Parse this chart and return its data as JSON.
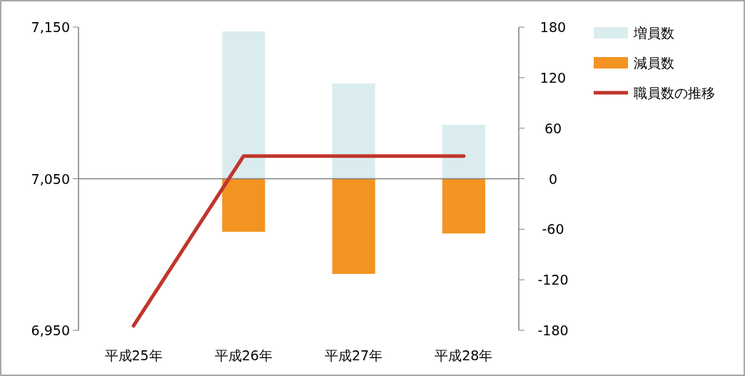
{
  "chart_data": {
    "type": "bar",
    "stacked": true,
    "categories": [
      "平成25年",
      "平成26年",
      "平成27年",
      "平成28年"
    ],
    "series": [
      {
        "name": "増員数",
        "axis": "y2",
        "color": "#daecee",
        "values": [
          null,
          175,
          113,
          64
        ]
      },
      {
        "name": "減員数",
        "axis": "y2",
        "color": "#f39322",
        "values": [
          null,
          -63,
          -113,
          -65
        ]
      },
      {
        "name": "職員数の推移",
        "type": "line",
        "axis": "y",
        "color": "#c0352b",
        "marker": "none",
        "values": [
          6953,
          7065,
          7065,
          7065
        ]
      }
    ],
    "ylim": [
      6950,
      7150
    ],
    "yticks": [
      {
        "value": 6950,
        "label": "6,950"
      },
      {
        "value": 7050,
        "label": "7,050"
      },
      {
        "value": 7150,
        "label": "7,150"
      }
    ],
    "y2lim": [
      -180,
      180
    ],
    "y2ticks": [
      -180,
      -120,
      -60,
      0,
      60,
      120,
      180
    ],
    "ref_lines": [
      {
        "axis": "y2",
        "value": 0,
        "color": "#7f7f7f"
      }
    ],
    "grid": false,
    "legend": "right"
  }
}
